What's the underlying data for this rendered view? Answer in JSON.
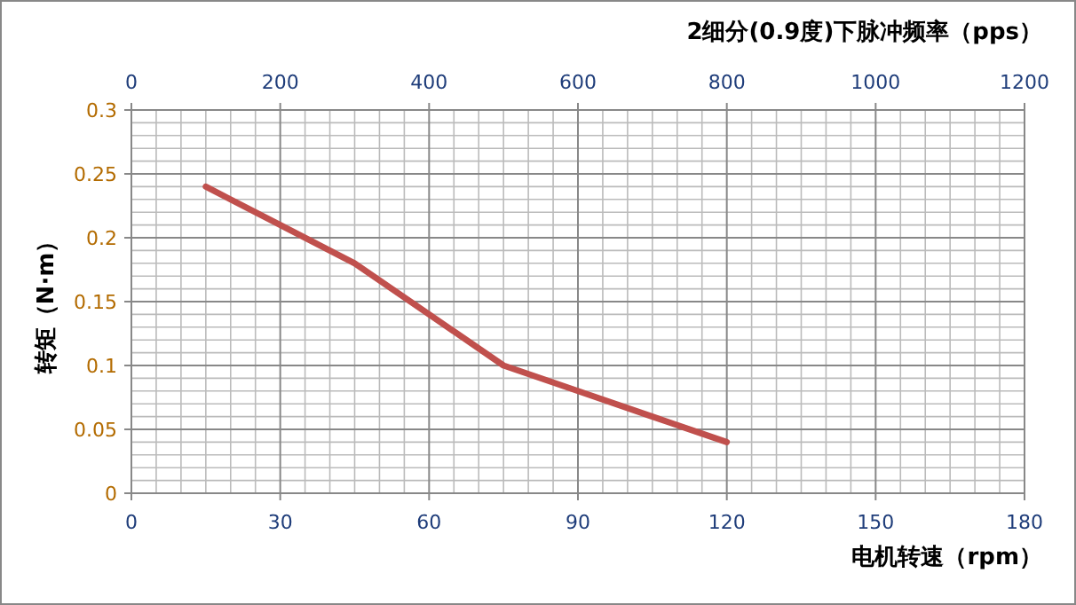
{
  "chart_data": {
    "type": "line",
    "xlabel": "电机转速（rpm）",
    "x2label": "2细分(0.9度)下脉冲频率（pps）",
    "ylabel": "转矩（N·m）",
    "x": [
      15,
      30,
      45,
      60,
      75,
      90,
      105,
      120
    ],
    "series": [
      {
        "color": "#c0504d",
        "values": [
          0.24,
          0.21,
          0.18,
          0.14,
          0.1,
          0.08,
          0.06,
          0.04
        ]
      }
    ],
    "xlim": [
      0,
      180
    ],
    "xticks": [
      0,
      30,
      60,
      90,
      120,
      150,
      180
    ],
    "x2lim": [
      0,
      1200
    ],
    "x2ticks": [
      0,
      200,
      400,
      600,
      800,
      1000,
      1200
    ],
    "ylim": [
      0,
      0.3
    ],
    "yticks": [
      0,
      0.05,
      0.1,
      0.15,
      0.2,
      0.25,
      0.3
    ],
    "grid": true,
    "marker": "none",
    "line_style": "solid"
  }
}
